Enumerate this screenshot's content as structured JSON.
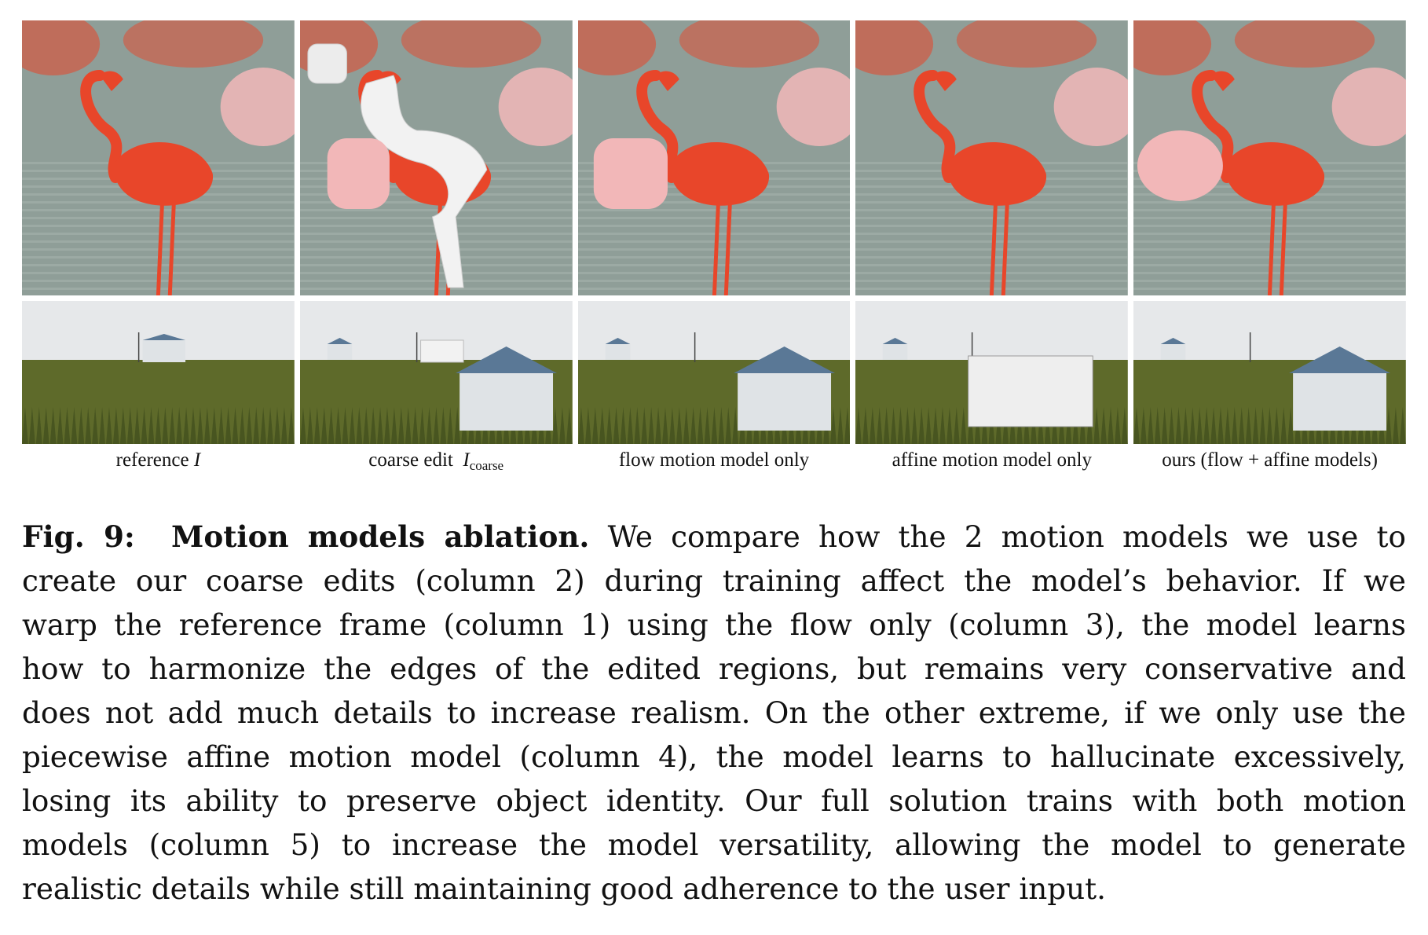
{
  "columns": [
    {
      "label_prefix": "reference",
      "label_symbol": "I",
      "label_sub": ""
    },
    {
      "label_prefix": "coarse edit",
      "label_symbol": "I",
      "label_sub": "coarse"
    },
    {
      "label_prefix": "flow motion model only",
      "label_symbol": "",
      "label_sub": ""
    },
    {
      "label_prefix": "affine motion model only",
      "label_symbol": "",
      "label_sub": ""
    },
    {
      "label_prefix": "ours (flow + affine models)",
      "label_symbol": "",
      "label_sub": ""
    }
  ],
  "caption": {
    "lead": "Fig. 9:",
    "title": "Motion models ablation.",
    "lines": [
      "We compare how the 2 motion models we use to",
      "create our coarse edits (column 2) during training affect the model’s behavior. If we",
      "warp the reference frame (column 1) using the flow only (column 3), the model learns",
      "how to harmonize the edges of the edited regions, but remains very conservative and",
      "does not add much details to increase realism. On the other extreme, if we only use the",
      "piecewise affine motion model (column 4), the model learns to hallucinate excessively,",
      "losing its ability to preserve object identity. Our full solution trains with both motion",
      "models (column 5) to increase the model versatility, allowing the model to generate",
      "realistic details while still maintaining good adherence to the user input."
    ]
  },
  "colors": {
    "flamingo": "#e8462a",
    "pale_flamingo": "#f2b7b8",
    "water": "#8f9e98",
    "sky": "#e6e8ea",
    "field": "#5e6a2a",
    "silo": "#dfe3e6",
    "roof": "#5a7896"
  }
}
